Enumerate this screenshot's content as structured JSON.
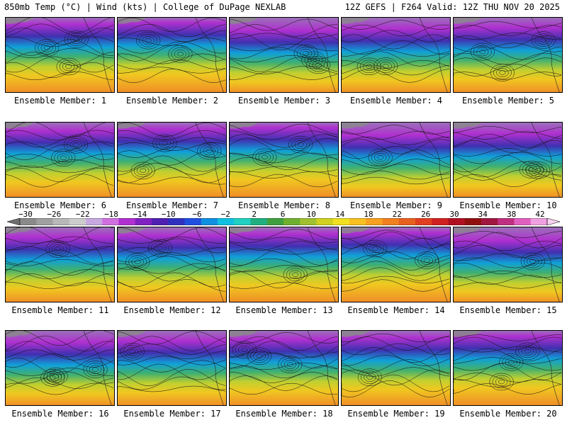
{
  "header": {
    "left": "850mb Temp (°C) | Wind (kts) | College of DuPage NEXLAB",
    "right": "12Z GEFS | F264 Valid: 12Z THU NOV 20 2025"
  },
  "panels": [
    {
      "label": "Ensemble Member: 1"
    },
    {
      "label": "Ensemble Member: 2"
    },
    {
      "label": "Ensemble Member: 3"
    },
    {
      "label": "Ensemble Member: 4"
    },
    {
      "label": "Ensemble Member: 5"
    },
    {
      "label": "Ensemble Member: 6"
    },
    {
      "label": "Ensemble Member: 7"
    },
    {
      "label": "Ensemble Member: 8"
    },
    {
      "label": "Ensemble Member: 9"
    },
    {
      "label": "Ensemble Member: 10"
    },
    {
      "label": "Ensemble Member: 11"
    },
    {
      "label": "Ensemble Member: 12"
    },
    {
      "label": "Ensemble Member: 13"
    },
    {
      "label": "Ensemble Member: 14"
    },
    {
      "label": "Ensemble Member: 15"
    },
    {
      "label": "Ensemble Member: 16"
    },
    {
      "label": "Ensemble Member: 17"
    },
    {
      "label": "Ensemble Member: 18"
    },
    {
      "label": "Ensemble Member: 19"
    },
    {
      "label": "Ensemble Member: 20"
    }
  ],
  "colorbar": {
    "ticks": [
      "−30",
      "−26",
      "−22",
      "−18",
      "−14",
      "−10",
      "−6",
      "−2",
      "2",
      "6",
      "10",
      "14",
      "18",
      "22",
      "26",
      "30",
      "34",
      "38",
      "42"
    ],
    "colors": [
      "#8a8a8a",
      "#a0a0a0",
      "#b8b8b8",
      "#cccccc",
      "#c8a8e0",
      "#d070e0",
      "#b030d0",
      "#8020c0",
      "#5020b0",
      "#3030c0",
      "#2050e0",
      "#1090e0",
      "#10c0e0",
      "#20d0c0",
      "#20b080",
      "#40a040",
      "#70b030",
      "#a0c030",
      "#d0d020",
      "#f0e020",
      "#f8c020",
      "#f8a020",
      "#f08020",
      "#e86020",
      "#e04020",
      "#d02020",
      "#b01020",
      "#901010",
      "#a01840",
      "#c03080",
      "#e060c0",
      "#f0a0e0"
    ]
  }
}
